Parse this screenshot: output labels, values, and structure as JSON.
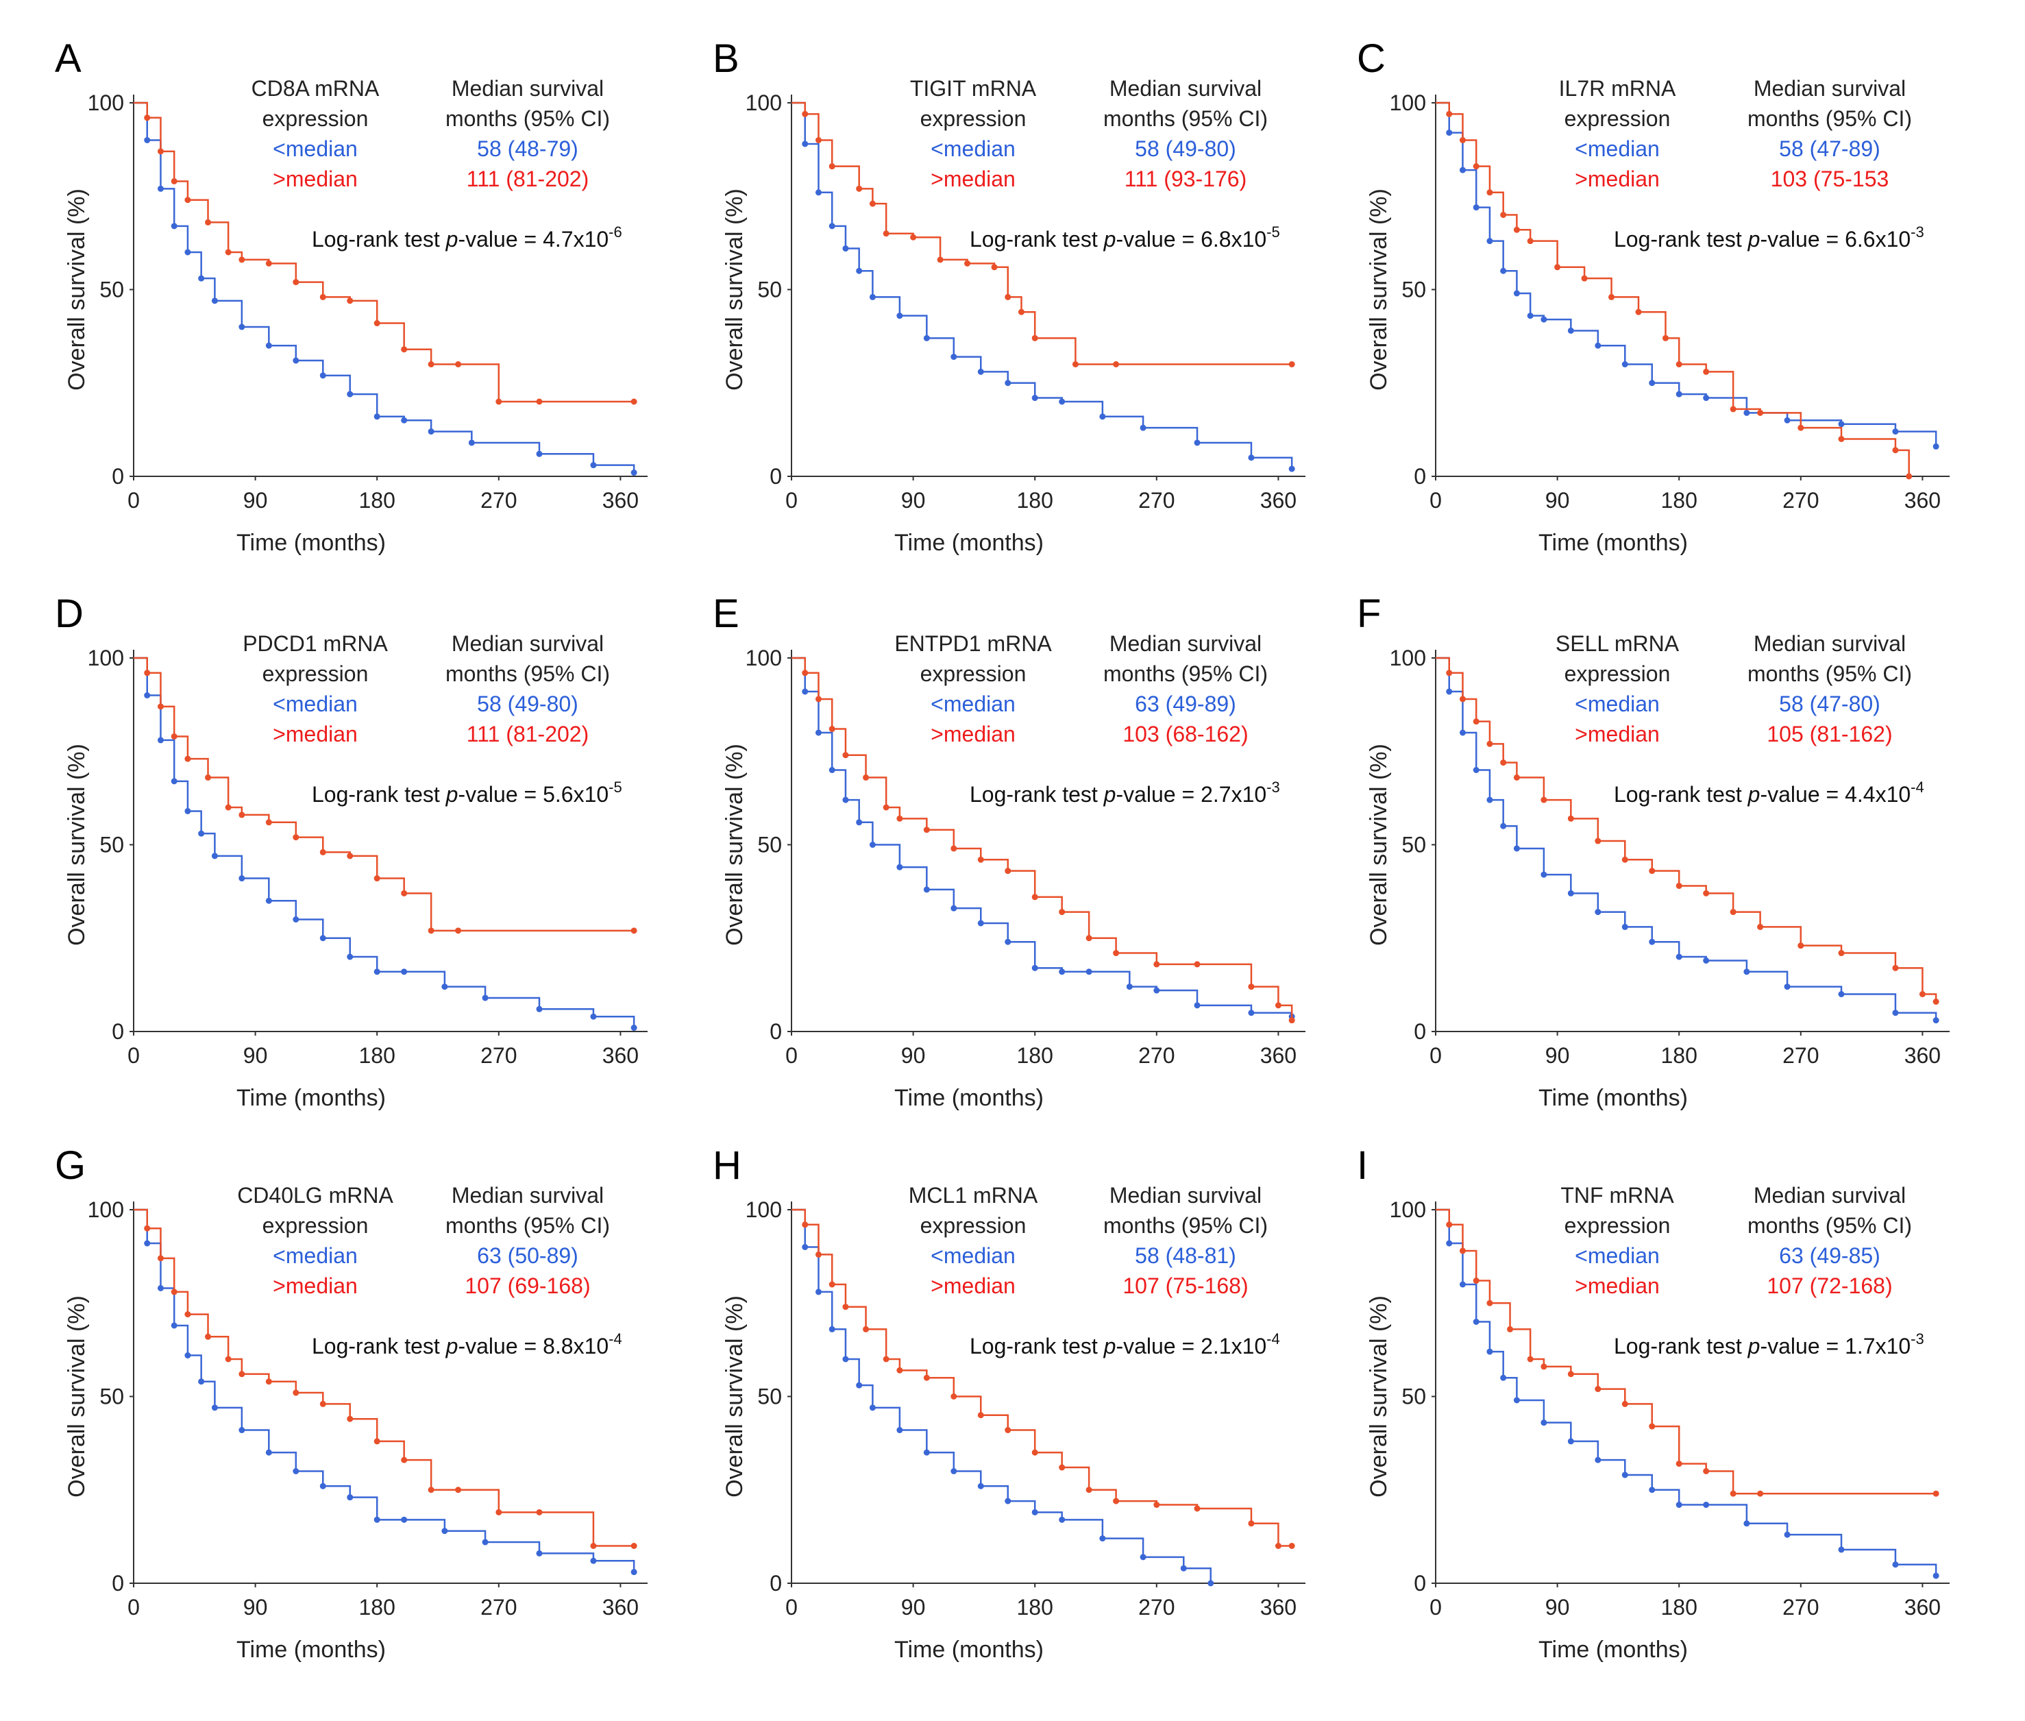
{
  "figure": {
    "xlabel": "Time  (months)",
    "ylabel": "Overall  survival  (%)",
    "legend_header": "Median survival",
    "legend_subheader": "months  (95% CI)",
    "legend_expression": "expression",
    "legend_low": "<median",
    "legend_high": ">median",
    "pvalue_prefix": "Log-rank test",
    "pvalue_italic": "p",
    "pvalue_mid": "-value",
    "colors": {
      "low": "#3a67d6",
      "high": "#e8502a",
      "axis": "#333333"
    }
  },
  "chart_data": [
    {
      "type": "line",
      "panel": "A",
      "gene": "CD8A mRNA",
      "low_ci": "58 (48-79)",
      "high_ci": "111 (81-202)",
      "pvalue": "= 4.7x10",
      "pvalue_exp": "-6",
      "xlim": [
        0,
        375
      ],
      "ylim": [
        0,
        100
      ],
      "xticks": [
        "0",
        "90",
        "180",
        "270",
        "360"
      ],
      "yticks": [
        "0",
        "50",
        "100"
      ],
      "series": [
        {
          "name": "<median",
          "x": [
            0,
            10,
            20,
            30,
            40,
            50,
            60,
            80,
            100,
            120,
            140,
            160,
            180,
            200,
            220,
            250,
            300,
            340,
            370
          ],
          "y": [
            100,
            90,
            77,
            67,
            60,
            53,
            47,
            40,
            35,
            31,
            27,
            22,
            16,
            15,
            12,
            9,
            6,
            3,
            1
          ]
        },
        {
          "name": ">median",
          "x": [
            0,
            10,
            20,
            30,
            40,
            55,
            70,
            80,
            100,
            120,
            140,
            160,
            180,
            200,
            220,
            240,
            270,
            300,
            370
          ],
          "y": [
            100,
            96,
            87,
            79,
            74,
            68,
            60,
            58,
            57,
            52,
            48,
            47,
            41,
            34,
            30,
            30,
            20,
            20,
            20
          ]
        }
      ]
    },
    {
      "type": "line",
      "panel": "B",
      "gene": "TIGIT mRNA",
      "low_ci": "58 (49-80)",
      "high_ci": "111 (93-176)",
      "pvalue": "= 6.8x10",
      "pvalue_exp": "-5",
      "xlim": [
        0,
        375
      ],
      "ylim": [
        0,
        100
      ],
      "xticks": [
        "0",
        "90",
        "180",
        "270",
        "360"
      ],
      "yticks": [
        "0",
        "50",
        "100"
      ],
      "series": [
        {
          "name": "<median",
          "x": [
            0,
            10,
            20,
            30,
            40,
            50,
            60,
            80,
            100,
            120,
            140,
            160,
            180,
            200,
            230,
            260,
            300,
            340,
            370
          ],
          "y": [
            100,
            89,
            76,
            67,
            61,
            55,
            48,
            43,
            37,
            32,
            28,
            25,
            21,
            20,
            16,
            13,
            9,
            5,
            2
          ]
        },
        {
          "name": ">median",
          "x": [
            0,
            10,
            20,
            30,
            50,
            60,
            70,
            90,
            110,
            130,
            150,
            160,
            170,
            180,
            210,
            240,
            370
          ],
          "y": [
            100,
            97,
            90,
            83,
            77,
            73,
            65,
            64,
            58,
            57,
            56,
            48,
            44,
            37,
            30,
            30,
            30
          ]
        }
      ]
    },
    {
      "type": "line",
      "panel": "C",
      "gene": "IL7R mRNA",
      "low_ci": "58 (47-89)",
      "high_ci": "103 (75-153",
      "pvalue": "= 6.6x10",
      "pvalue_exp": "-3",
      "xlim": [
        0,
        375
      ],
      "ylim": [
        0,
        100
      ],
      "xticks": [
        "0",
        "90",
        "180",
        "270",
        "360"
      ],
      "yticks": [
        "0",
        "50",
        "100"
      ],
      "series": [
        {
          "name": "<median",
          "x": [
            0,
            10,
            20,
            30,
            40,
            50,
            60,
            70,
            80,
            100,
            120,
            140,
            160,
            180,
            200,
            230,
            260,
            300,
            340,
            370
          ],
          "y": [
            100,
            92,
            82,
            72,
            63,
            55,
            49,
            43,
            42,
            39,
            35,
            30,
            25,
            22,
            21,
            17,
            15,
            14,
            12,
            8
          ]
        },
        {
          "name": ">median",
          "x": [
            0,
            10,
            20,
            30,
            40,
            50,
            60,
            70,
            90,
            110,
            130,
            150,
            170,
            180,
            200,
            220,
            240,
            270,
            300,
            340,
            350
          ],
          "y": [
            100,
            97,
            90,
            83,
            76,
            70,
            66,
            63,
            56,
            53,
            48,
            44,
            37,
            30,
            28,
            18,
            17,
            13,
            10,
            7,
            0
          ]
        }
      ]
    },
    {
      "type": "line",
      "panel": "D",
      "gene": "PDCD1 mRNA",
      "low_ci": "58 (49-80)",
      "high_ci": "111 (81-202)",
      "pvalue": "= 5.6x10",
      "pvalue_exp": "-5",
      "xlim": [
        0,
        375
      ],
      "ylim": [
        0,
        100
      ],
      "xticks": [
        "0",
        "90",
        "180",
        "270",
        "360"
      ],
      "yticks": [
        "0",
        "50",
        "100"
      ],
      "series": [
        {
          "name": "<median",
          "x": [
            0,
            10,
            20,
            30,
            40,
            50,
            60,
            80,
            100,
            120,
            140,
            160,
            180,
            200,
            230,
            260,
            300,
            340,
            370
          ],
          "y": [
            100,
            90,
            78,
            67,
            59,
            53,
            47,
            41,
            35,
            30,
            25,
            20,
            16,
            16,
            12,
            9,
            6,
            4,
            1
          ]
        },
        {
          "name": ">median",
          "x": [
            0,
            10,
            20,
            30,
            40,
            55,
            70,
            80,
            100,
            120,
            140,
            160,
            180,
            200,
            220,
            240,
            370
          ],
          "y": [
            100,
            96,
            87,
            79,
            73,
            68,
            60,
            58,
            56,
            52,
            48,
            47,
            41,
            37,
            27,
            27,
            27
          ]
        }
      ]
    },
    {
      "type": "line",
      "panel": "E",
      "gene": "ENTPD1 mRNA",
      "low_ci": "63 (49-89)",
      "high_ci": "103 (68-162)",
      "pvalue": "= 2.7x10",
      "pvalue_exp": "-3",
      "xlim": [
        0,
        375
      ],
      "ylim": [
        0,
        100
      ],
      "xticks": [
        "0",
        "90",
        "180",
        "270",
        "360"
      ],
      "yticks": [
        "0",
        "50",
        "100"
      ],
      "series": [
        {
          "name": "<median",
          "x": [
            0,
            10,
            20,
            30,
            40,
            50,
            60,
            80,
            100,
            120,
            140,
            160,
            180,
            200,
            220,
            250,
            270,
            300,
            340,
            370
          ],
          "y": [
            100,
            91,
            80,
            70,
            62,
            56,
            50,
            44,
            38,
            33,
            29,
            24,
            17,
            16,
            16,
            12,
            11,
            7,
            5,
            4
          ]
        },
        {
          "name": ">median",
          "x": [
            0,
            10,
            20,
            30,
            40,
            55,
            70,
            80,
            100,
            120,
            140,
            160,
            180,
            200,
            220,
            240,
            270,
            300,
            340,
            360,
            370
          ],
          "y": [
            100,
            96,
            89,
            81,
            74,
            68,
            60,
            57,
            54,
            49,
            46,
            43,
            36,
            32,
            25,
            21,
            18,
            18,
            12,
            7,
            3
          ]
        }
      ]
    },
    {
      "type": "line",
      "panel": "F",
      "gene": "SELL mRNA",
      "low_ci": "58 (47-80)",
      "high_ci": "105 (81-162)",
      "pvalue": "= 4.4x10",
      "pvalue_exp": "-4",
      "xlim": [
        0,
        375
      ],
      "ylim": [
        0,
        100
      ],
      "xticks": [
        "0",
        "90",
        "180",
        "270",
        "360"
      ],
      "yticks": [
        "0",
        "50",
        "100"
      ],
      "series": [
        {
          "name": "<median",
          "x": [
            0,
            10,
            20,
            30,
            40,
            50,
            60,
            80,
            100,
            120,
            140,
            160,
            180,
            200,
            230,
            260,
            300,
            340,
            370
          ],
          "y": [
            100,
            91,
            80,
            70,
            62,
            55,
            49,
            42,
            37,
            32,
            28,
            24,
            20,
            19,
            16,
            12,
            10,
            5,
            3
          ]
        },
        {
          "name": ">median",
          "x": [
            0,
            10,
            20,
            30,
            40,
            50,
            60,
            80,
            100,
            120,
            140,
            160,
            180,
            200,
            220,
            240,
            270,
            300,
            340,
            360,
            370
          ],
          "y": [
            100,
            96,
            89,
            83,
            77,
            72,
            68,
            62,
            57,
            51,
            46,
            43,
            39,
            37,
            32,
            28,
            23,
            21,
            17,
            10,
            8
          ]
        }
      ]
    },
    {
      "type": "line",
      "panel": "G",
      "gene": "CD40LG mRNA",
      "low_ci": "63 (50-89)",
      "high_ci": "107 (69-168)",
      "pvalue": "= 8.8x10",
      "pvalue_exp": "-4",
      "xlim": [
        0,
        375
      ],
      "ylim": [
        0,
        100
      ],
      "xticks": [
        "0",
        "90",
        "180",
        "270",
        "360"
      ],
      "yticks": [
        "0",
        "50",
        "100"
      ],
      "series": [
        {
          "name": "<median",
          "x": [
            0,
            10,
            20,
            30,
            40,
            50,
            60,
            80,
            100,
            120,
            140,
            160,
            180,
            200,
            230,
            260,
            300,
            340,
            370
          ],
          "y": [
            100,
            91,
            79,
            69,
            61,
            54,
            47,
            41,
            35,
            30,
            26,
            23,
            17,
            17,
            14,
            11,
            8,
            6,
            3
          ]
        },
        {
          "name": ">median",
          "x": [
            0,
            10,
            20,
            30,
            40,
            55,
            70,
            80,
            100,
            120,
            140,
            160,
            180,
            200,
            220,
            240,
            270,
            300,
            340,
            370
          ],
          "y": [
            100,
            95,
            87,
            78,
            72,
            66,
            60,
            56,
            54,
            51,
            48,
            44,
            38,
            33,
            25,
            25,
            19,
            19,
            10,
            10
          ]
        }
      ]
    },
    {
      "type": "line",
      "panel": "H",
      "gene": "MCL1 mRNA",
      "low_ci": "58 (48-81)",
      "high_ci": "107 (75-168)",
      "pvalue": "= 2.1x10",
      "pvalue_exp": "-4",
      "xlim": [
        0,
        375
      ],
      "ylim": [
        0,
        100
      ],
      "xticks": [
        "0",
        "90",
        "180",
        "270",
        "360"
      ],
      "yticks": [
        "0",
        "50",
        "100"
      ],
      "series": [
        {
          "name": "<median",
          "x": [
            0,
            10,
            20,
            30,
            40,
            50,
            60,
            80,
            100,
            120,
            140,
            160,
            180,
            200,
            230,
            260,
            290,
            310
          ],
          "y": [
            100,
            90,
            78,
            68,
            60,
            53,
            47,
            41,
            35,
            30,
            26,
            22,
            19,
            17,
            12,
            7,
            4,
            0
          ]
        },
        {
          "name": ">median",
          "x": [
            0,
            10,
            20,
            30,
            40,
            55,
            70,
            80,
            100,
            120,
            140,
            160,
            180,
            200,
            220,
            240,
            270,
            300,
            340,
            360,
            370
          ],
          "y": [
            100,
            96,
            88,
            80,
            74,
            68,
            60,
            57,
            55,
            50,
            45,
            41,
            35,
            31,
            25,
            22,
            21,
            20,
            16,
            10,
            10
          ]
        }
      ]
    },
    {
      "type": "line",
      "panel": "I",
      "gene": "TNF mRNA",
      "low_ci": "63 (49-85)",
      "high_ci": "107 (72-168)",
      "pvalue": "= 1.7x10",
      "pvalue_exp": "-3",
      "xlim": [
        0,
        375
      ],
      "ylim": [
        0,
        100
      ],
      "xticks": [
        "0",
        "90",
        "180",
        "270",
        "360"
      ],
      "yticks": [
        "0",
        "50",
        "100"
      ],
      "series": [
        {
          "name": "<median",
          "x": [
            0,
            10,
            20,
            30,
            40,
            50,
            60,
            80,
            100,
            120,
            140,
            160,
            180,
            200,
            230,
            260,
            300,
            340,
            370
          ],
          "y": [
            100,
            91,
            80,
            70,
            62,
            55,
            49,
            43,
            38,
            33,
            29,
            25,
            21,
            21,
            16,
            13,
            9,
            5,
            2
          ]
        },
        {
          "name": ">median",
          "x": [
            0,
            10,
            20,
            30,
            40,
            55,
            70,
            80,
            100,
            120,
            140,
            160,
            180,
            200,
            220,
            240,
            370
          ],
          "y": [
            100,
            96,
            89,
            81,
            75,
            68,
            60,
            58,
            56,
            52,
            48,
            42,
            32,
            30,
            24,
            24,
            24
          ]
        }
      ]
    }
  ]
}
